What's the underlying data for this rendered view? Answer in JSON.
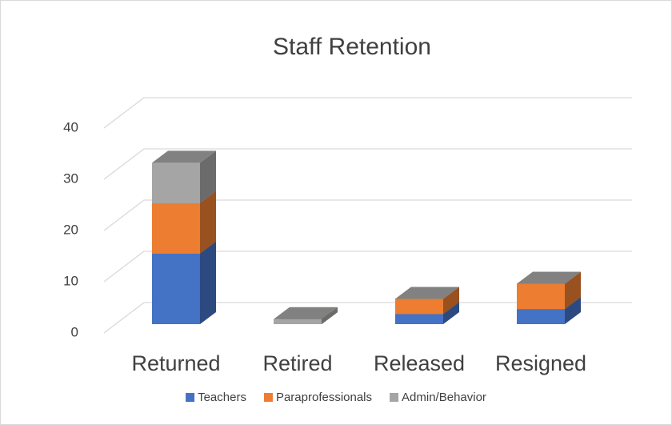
{
  "chart_data": {
    "type": "bar3d_stacked",
    "title": "Staff Retention",
    "categories": [
      "Returned",
      "Retired",
      "Released",
      "Resigned"
    ],
    "series": [
      {
        "name": "Teachers",
        "color": "#4472c4",
        "values": [
          14,
          0,
          2,
          3
        ]
      },
      {
        "name": "Paraprofessionals",
        "color": "#ed7d31",
        "values": [
          10,
          0,
          3,
          5
        ]
      },
      {
        "name": "Admin/Behavior",
        "color": "#a5a5a5",
        "values": [
          8,
          1,
          0,
          0
        ]
      }
    ],
    "ylim": [
      0,
      40
    ],
    "yticks": [
      0,
      10,
      20,
      30,
      40
    ],
    "grid": true,
    "legend": "bottom"
  }
}
